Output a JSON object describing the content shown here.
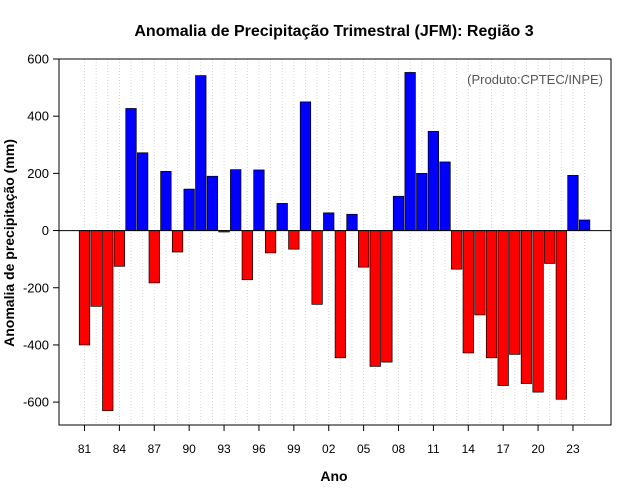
{
  "chart_data": {
    "type": "bar",
    "title": "Anomalia de Precipitação Trimestral (JFM): Região 3",
    "xlabel": "Ano",
    "ylabel": "Anomalia de precipitação (mm)",
    "annotation": "(Produto:CPTEC/INPE)",
    "ylim": [
      -680,
      600
    ],
    "yticks": [
      -600,
      -400,
      -200,
      0,
      200,
      400,
      600
    ],
    "xtick_labels": [
      "81",
      "84",
      "87",
      "90",
      "93",
      "96",
      "99",
      "02",
      "05",
      "08",
      "11",
      "14",
      "17",
      "20",
      "23"
    ],
    "grid": "vertical dotted",
    "colors": {
      "positive": "#0000ff",
      "negative": "#ff0000",
      "grid": "#cccccc"
    },
    "categories": [
      "1981",
      "1982",
      "1983",
      "1984",
      "1985",
      "1986",
      "1987",
      "1988",
      "1989",
      "1990",
      "1991",
      "1992",
      "1993",
      "1994",
      "1995",
      "1996",
      "1997",
      "1998",
      "1999",
      "2000",
      "2001",
      "2002",
      "2003",
      "2004",
      "2005",
      "2006",
      "2007",
      "2008",
      "2009",
      "2010",
      "2011",
      "2012",
      "2013",
      "2014",
      "2015",
      "2016",
      "2017",
      "2018",
      "2019",
      "2020",
      "2021",
      "2022",
      "2023",
      "2024"
    ],
    "values": [
      -400,
      -265,
      -630,
      -125,
      427,
      272,
      -183,
      207,
      -75,
      145,
      542,
      190,
      -5,
      213,
      -172,
      212,
      -78,
      95,
      -65,
      450,
      -258,
      62,
      -445,
      57,
      -128,
      -475,
      -460,
      120,
      553,
      200,
      347,
      240,
      -135,
      -428,
      -295,
      -445,
      -542,
      -433,
      -535,
      -565,
      -115,
      -590,
      193,
      37
    ]
  }
}
